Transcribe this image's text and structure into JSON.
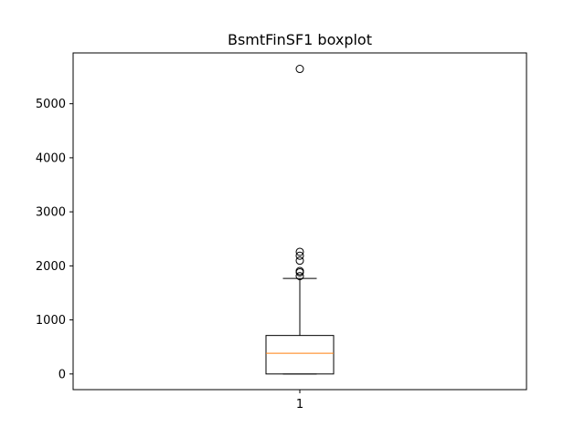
{
  "chart_data": {
    "type": "boxplot",
    "title": "BsmtFinSF1 boxplot",
    "xlabel": "",
    "ylabel": "",
    "categories": [
      "1"
    ],
    "ylim": [
      -290,
      5940
    ],
    "yticks": [
      0,
      1000,
      2000,
      3000,
      4000,
      5000
    ],
    "grid": false,
    "boxes": [
      {
        "category": "1",
        "whisker_low": 0,
        "q1": 0,
        "median": 383,
        "q3": 712,
        "whisker_high": 1767,
        "outliers": [
          1810,
          1880,
          1904,
          2096,
          2188,
          2260,
          5644
        ]
      }
    ],
    "colors": {
      "box": "#000000",
      "median": "#ff7f0e",
      "whisker": "#000000",
      "flier": "#000000"
    }
  }
}
